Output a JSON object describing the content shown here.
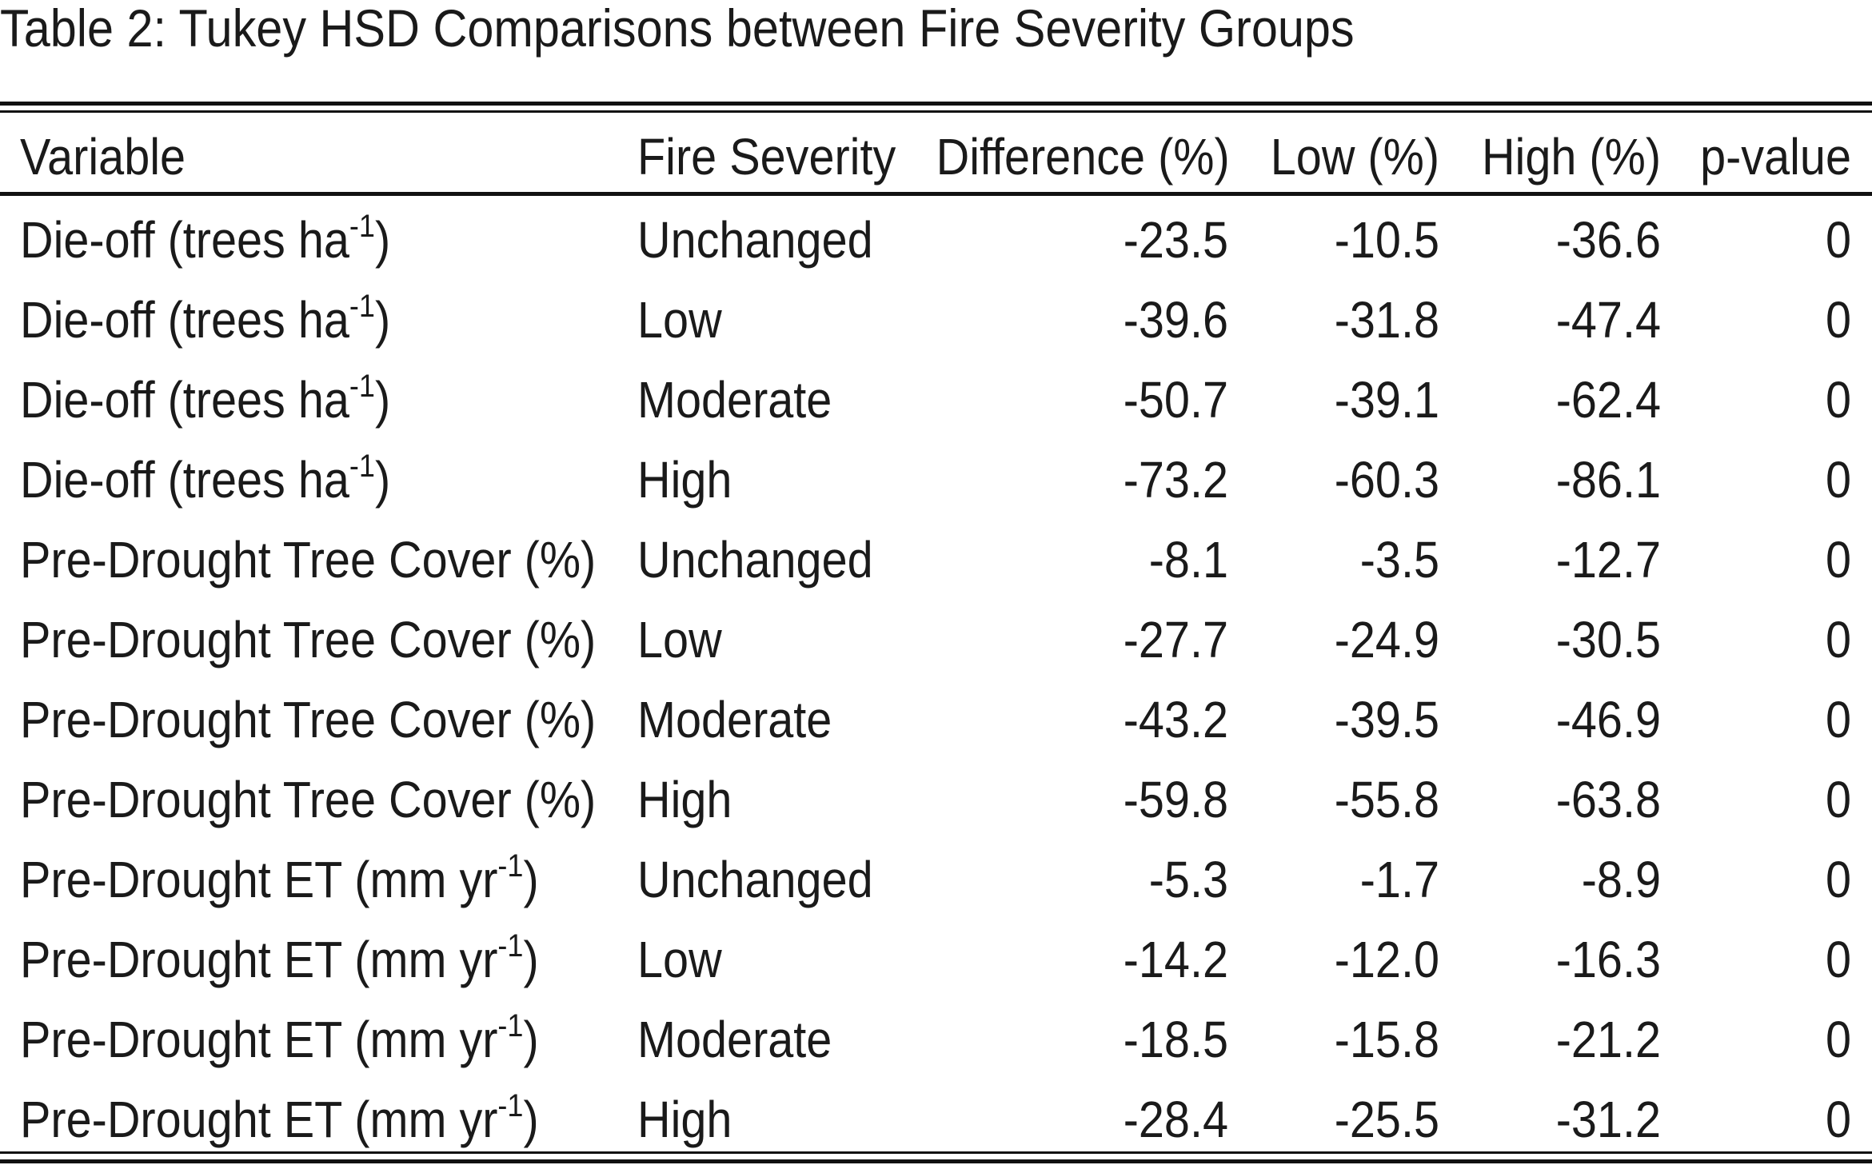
{
  "caption": "Table 2: Tukey HSD Comparisons between Fire Severity Groups",
  "headers": {
    "variable": "Variable",
    "fire_severity": "Fire Severity",
    "difference": "Difference (%)",
    "low": "Low (%)",
    "high": "High (%)",
    "p_value": "p-value"
  },
  "rows": [
    {
      "var_base": "Die-off (trees ha",
      "var_sup": "-1",
      "var_close": ")",
      "severity": "Unchanged",
      "difference": "-23.5",
      "low": "-10.5",
      "high": "-36.6",
      "p": "0"
    },
    {
      "var_base": "Die-off (trees ha",
      "var_sup": "-1",
      "var_close": ")",
      "severity": "Low",
      "difference": "-39.6",
      "low": "-31.8",
      "high": "-47.4",
      "p": "0"
    },
    {
      "var_base": "Die-off (trees ha",
      "var_sup": "-1",
      "var_close": ")",
      "severity": "Moderate",
      "difference": "-50.7",
      "low": "-39.1",
      "high": "-62.4",
      "p": "0"
    },
    {
      "var_base": "Die-off (trees ha",
      "var_sup": "-1",
      "var_close": ")",
      "severity": "High",
      "difference": "-73.2",
      "low": "-60.3",
      "high": "-86.1",
      "p": "0"
    },
    {
      "var_base": "Pre-Drought Tree Cover (%)",
      "var_sup": "",
      "var_close": "",
      "severity": "Unchanged",
      "difference": "-8.1",
      "low": "-3.5",
      "high": "-12.7",
      "p": "0"
    },
    {
      "var_base": "Pre-Drought Tree Cover (%)",
      "var_sup": "",
      "var_close": "",
      "severity": "Low",
      "difference": "-27.7",
      "low": "-24.9",
      "high": "-30.5",
      "p": "0"
    },
    {
      "var_base": "Pre-Drought Tree Cover (%)",
      "var_sup": "",
      "var_close": "",
      "severity": "Moderate",
      "difference": "-43.2",
      "low": "-39.5",
      "high": "-46.9",
      "p": "0"
    },
    {
      "var_base": "Pre-Drought Tree Cover (%)",
      "var_sup": "",
      "var_close": "",
      "severity": "High",
      "difference": "-59.8",
      "low": "-55.8",
      "high": "-63.8",
      "p": "0"
    },
    {
      "var_base": "Pre-Drought ET (mm yr",
      "var_sup": "-1",
      "var_close": ")",
      "severity": "Unchanged",
      "difference": "-5.3",
      "low": "-1.7",
      "high": "-8.9",
      "p": "0"
    },
    {
      "var_base": "Pre-Drought ET (mm yr",
      "var_sup": "-1",
      "var_close": ")",
      "severity": "Low",
      "difference": "-14.2",
      "low": "-12.0",
      "high": "-16.3",
      "p": "0"
    },
    {
      "var_base": "Pre-Drought ET (mm yr",
      "var_sup": "-1",
      "var_close": ")",
      "severity": "Moderate",
      "difference": "-18.5",
      "low": "-15.8",
      "high": "-21.2",
      "p": "0"
    },
    {
      "var_base": "Pre-Drought ET (mm yr",
      "var_sup": "-1",
      "var_close": ")",
      "severity": "High",
      "difference": "-28.4",
      "low": "-25.5",
      "high": "-31.2",
      "p": "0"
    }
  ]
}
